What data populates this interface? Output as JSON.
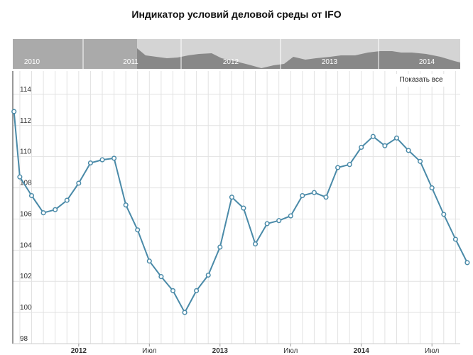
{
  "chart_data": {
    "type": "line",
    "title": "Индикатор условий деловой среды от IFO",
    "xlabel": "",
    "ylabel": "",
    "ylim": [
      98,
      115.5
    ],
    "y_ticks": [
      98,
      100,
      102,
      104,
      106,
      108,
      110,
      112,
      114
    ],
    "x_tick_labels": [
      {
        "label": "2012",
        "month_index": 0,
        "bold": true
      },
      {
        "label": "Июл",
        "month_index": 6,
        "bold": false
      },
      {
        "label": "2013",
        "month_index": 12,
        "bold": true
      },
      {
        "label": "Июл",
        "month_index": 18,
        "bold": false
      },
      {
        "label": "2014",
        "month_index": 24,
        "bold": true
      },
      {
        "label": "Июл",
        "month_index": 30,
        "bold": false
      }
    ],
    "x_range_months": [
      -5.6,
      32.4
    ],
    "grid": true,
    "series": [
      {
        "color": "#4a8aa8",
        "points": [
          {
            "x": -5.5,
            "y": 112.9
          },
          {
            "x": -5,
            "y": 108.7
          },
          {
            "x": -4,
            "y": 107.5
          },
          {
            "x": -3,
            "y": 106.4
          },
          {
            "x": -2,
            "y": 106.6
          },
          {
            "x": -1,
            "y": 107.2
          },
          {
            "x": 0,
            "y": 108.3
          },
          {
            "x": 1,
            "y": 109.6
          },
          {
            "x": 2,
            "y": 109.8
          },
          {
            "x": 3,
            "y": 109.9
          },
          {
            "x": 4,
            "y": 106.9
          },
          {
            "x": 5,
            "y": 105.3
          },
          {
            "x": 6,
            "y": 103.3
          },
          {
            "x": 7,
            "y": 102.3
          },
          {
            "x": 8,
            "y": 101.4
          },
          {
            "x": 9,
            "y": 100.0
          },
          {
            "x": 10,
            "y": 101.4
          },
          {
            "x": 11,
            "y": 102.4
          },
          {
            "x": 12,
            "y": 104.2
          },
          {
            "x": 13,
            "y": 107.4
          },
          {
            "x": 14,
            "y": 106.7
          },
          {
            "x": 15,
            "y": 104.4
          },
          {
            "x": 16,
            "y": 105.7
          },
          {
            "x": 17,
            "y": 105.9
          },
          {
            "x": 18,
            "y": 106.2
          },
          {
            "x": 19,
            "y": 107.5
          },
          {
            "x": 20,
            "y": 107.7
          },
          {
            "x": 21,
            "y": 107.4
          },
          {
            "x": 22,
            "y": 109.3
          },
          {
            "x": 23,
            "y": 109.5
          },
          {
            "x": 24,
            "y": 110.6
          },
          {
            "x": 25,
            "y": 111.3
          },
          {
            "x": 26,
            "y": 110.7
          },
          {
            "x": 27,
            "y": 111.2
          },
          {
            "x": 28,
            "y": 110.4
          },
          {
            "x": 29,
            "y": 109.7
          },
          {
            "x": 30,
            "y": 108.0
          },
          {
            "x": 31,
            "y": 106.3
          },
          {
            "x": 32,
            "y": 104.7
          },
          {
            "x": 33,
            "y": 103.2
          }
        ]
      }
    ]
  },
  "navigator": {
    "year_labels": [
      "2010",
      "2011",
      "2012",
      "2013",
      "2014"
    ],
    "colors": {
      "background_dark": "#aaaaaa",
      "background_light": "#d4d4d4",
      "area_fill": "#888888",
      "divider": "#ffffff"
    }
  },
  "controls": {
    "show_all_label": "Показать все"
  }
}
